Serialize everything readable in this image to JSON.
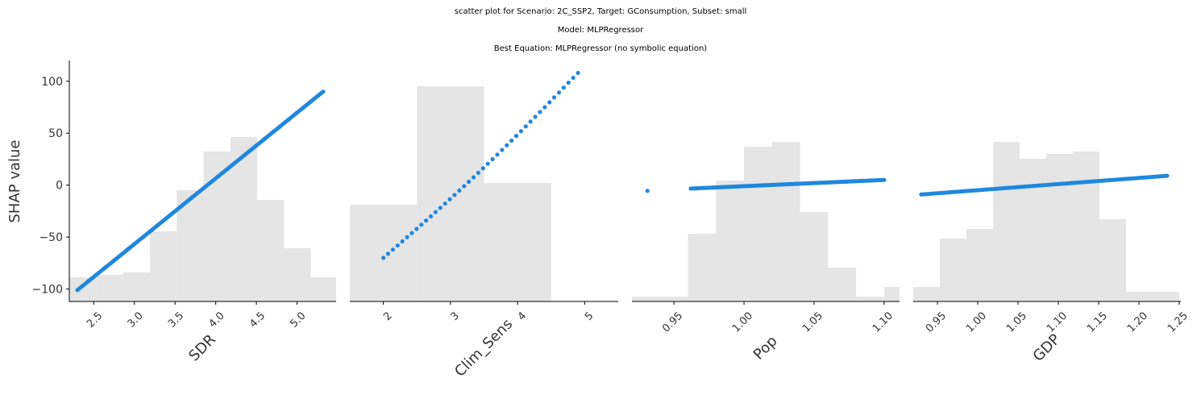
{
  "title_lines": [
    "scatter plot for Scenario: 2C_SSP2, Target: GConsumption, Subset: small",
    "Model: MLPRegressor",
    "Best Equation: MLPRegressor (no symbolic equation)"
  ],
  "colors": {
    "points": "#1f87de",
    "histogram": "#e5e5e5",
    "axis": "#000000"
  },
  "chart_data": [
    {
      "type": "scatter",
      "xlabel": "SDR",
      "ylabel": "SHAP value",
      "xlim": [
        2.2,
        5.48
      ],
      "ylim": [
        -112,
        120
      ],
      "xticks": [
        2.5,
        3.0,
        3.5,
        4.0,
        4.5,
        5.0
      ],
      "xtick_labels": [
        "2.5",
        "3.0",
        "3.5",
        "4.0",
        "4.5",
        "5.0"
      ],
      "yticks": [
        100,
        50,
        0,
        -50,
        -100
      ],
      "ytick_labels": [
        "100",
        "50",
        "0",
        "−50",
        "−100"
      ],
      "show_yaxis": true,
      "histogram": {
        "bins": [
          [
            2.2,
            2.53
          ],
          [
            2.53,
            2.86
          ],
          [
            2.86,
            3.19
          ],
          [
            3.19,
            3.52
          ],
          [
            3.52,
            3.85
          ],
          [
            3.85,
            4.18
          ],
          [
            4.18,
            4.51
          ],
          [
            4.51,
            4.84
          ],
          [
            4.84,
            5.17
          ],
          [
            5.17,
            5.5
          ]
        ],
        "heights": [
          0.1,
          0.11,
          0.12,
          0.29,
          0.46,
          0.62,
          0.68,
          0.42,
          0.22,
          0.1
        ]
      },
      "points": {
        "x_start": 2.3,
        "x_end": 5.32,
        "y_start": -101,
        "y_end": 90,
        "n": 150,
        "curvature": 0
      }
    },
    {
      "type": "scatter",
      "xlabel": "Clim_Sens",
      "ylabel": "",
      "xlim": [
        1.5,
        5.5
      ],
      "ylim": [
        -112,
        120
      ],
      "xticks": [
        2,
        3,
        4,
        5
      ],
      "xtick_labels": [
        "2",
        "3",
        "4",
        "5"
      ],
      "yticks": [],
      "ytick_labels": [],
      "show_yaxis": false,
      "histogram": {
        "bins": [
          [
            1.5,
            2.5
          ],
          [
            2.5,
            3.5
          ],
          [
            3.5,
            4.5
          ],
          [
            4.5,
            5.5
          ]
        ],
        "heights": [
          0.4,
          0.89,
          0.49,
          0.0
        ]
      },
      "points": {
        "x_start": 2.0,
        "x_end": 4.9,
        "y_start": -70,
        "y_end": 108,
        "n": 42,
        "curvature": -5
      }
    },
    {
      "type": "scatter",
      "xlabel": "Pop",
      "ylabel": "",
      "xlim": [
        0.92,
        1.111
      ],
      "ylim": [
        -112,
        120
      ],
      "xticks": [
        0.95,
        1.0,
        1.05,
        1.1
      ],
      "xtick_labels": [
        "0.95",
        "1.00",
        "1.05",
        "1.10"
      ],
      "yticks": [],
      "ytick_labels": [],
      "show_yaxis": false,
      "histogram": {
        "bins": [
          [
            0.92,
            0.94
          ],
          [
            0.94,
            0.96
          ],
          [
            0.96,
            0.98
          ],
          [
            0.98,
            1.0
          ],
          [
            1.0,
            1.02
          ],
          [
            1.02,
            1.04
          ],
          [
            1.04,
            1.06
          ],
          [
            1.06,
            1.08
          ],
          [
            1.08,
            1.1
          ],
          [
            1.1,
            1.12
          ]
        ],
        "heights": [
          0.02,
          0.02,
          0.28,
          0.5,
          0.64,
          0.66,
          0.37,
          0.14,
          0.02,
          0.06
        ]
      },
      "points": {
        "x_start": 0.962,
        "x_end": 1.1,
        "y_start": -3.3,
        "y_end": 5,
        "n": 110,
        "curvature": 0,
        "extra": [
          [
            0.931,
            -5.5
          ]
        ]
      }
    },
    {
      "type": "scatter",
      "xlabel": "GDP",
      "ylabel": "",
      "xlim": [
        0.92,
        1.252
      ],
      "ylim": [
        -112,
        120
      ],
      "xticks": [
        0.95,
        1.0,
        1.05,
        1.1,
        1.15,
        1.2,
        1.25
      ],
      "xtick_labels": [
        "0.95",
        "1.00",
        "1.05",
        "1.10",
        "1.15",
        "1.20",
        "1.25"
      ],
      "yticks": [],
      "ytick_labels": [],
      "show_yaxis": false,
      "histogram": {
        "bins": [
          [
            0.92,
            0.953
          ],
          [
            0.953,
            0.986
          ],
          [
            0.986,
            1.019
          ],
          [
            1.019,
            1.052
          ],
          [
            1.052,
            1.085
          ],
          [
            1.085,
            1.118
          ],
          [
            1.118,
            1.151
          ],
          [
            1.151,
            1.184
          ],
          [
            1.184,
            1.217
          ],
          [
            1.217,
            1.25
          ]
        ],
        "heights": [
          0.06,
          0.26,
          0.3,
          0.66,
          0.59,
          0.61,
          0.62,
          0.34,
          0.04,
          0.04
        ]
      },
      "points": {
        "x_start": 0.93,
        "x_end": 1.235,
        "y_start": -9,
        "y_end": 9,
        "n": 120,
        "curvature": 0
      }
    }
  ]
}
